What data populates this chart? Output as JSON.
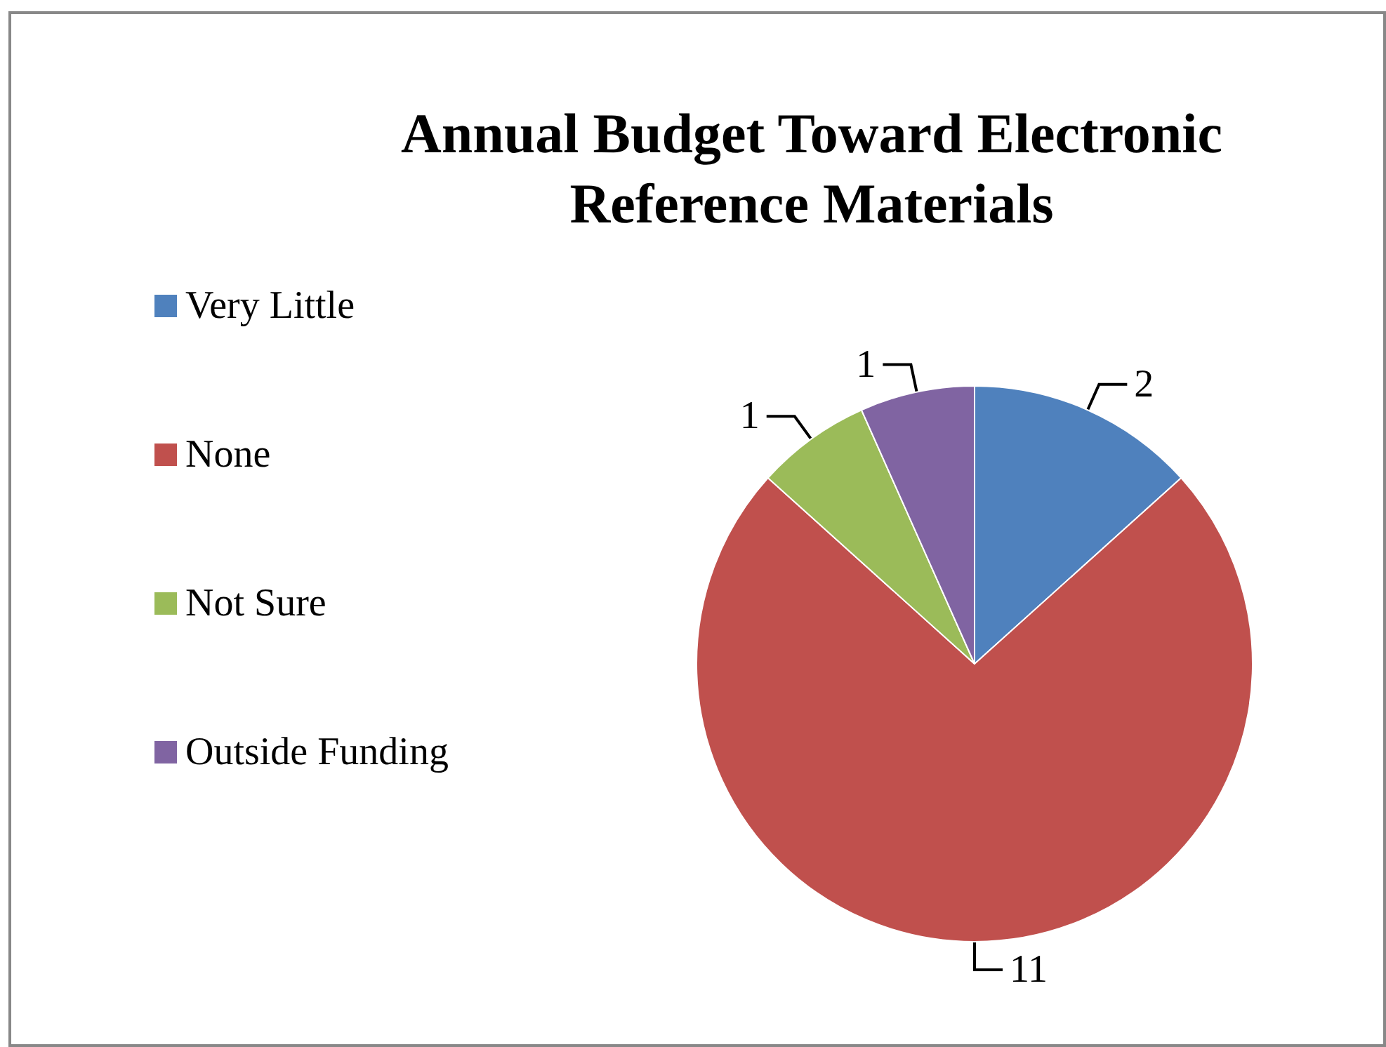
{
  "chart_data": {
    "type": "pie",
    "title": "Annual Budget Toward Electronic\nReference Materials",
    "categories": [
      "Very Little",
      "None",
      "Not Sure",
      "Outside Funding"
    ],
    "values": [
      2,
      11,
      1,
      1
    ],
    "colors": [
      "#4f81bd",
      "#c0504d",
      "#9bbb59",
      "#8064a2"
    ],
    "legend": "left",
    "data_labels": true
  }
}
